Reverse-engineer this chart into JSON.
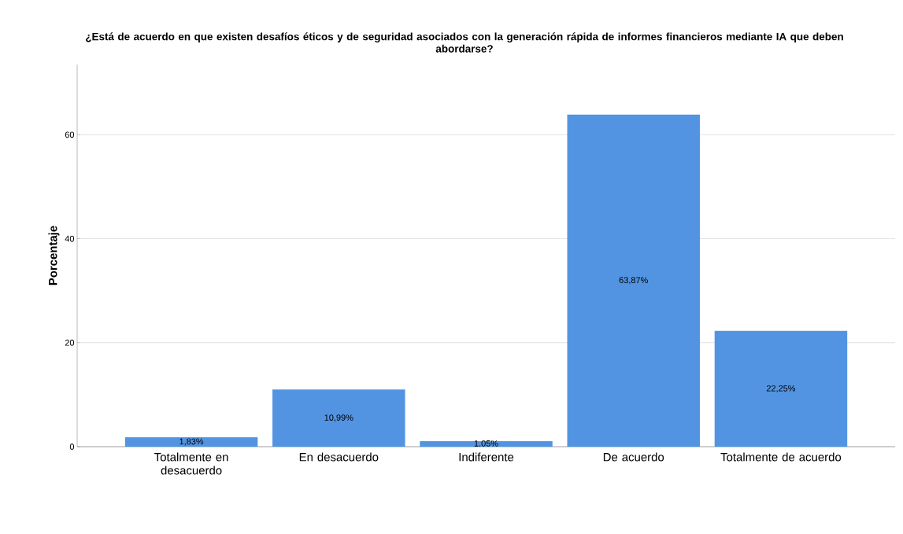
{
  "chart_data": {
    "type": "bar",
    "title": "¿Está de acuerdo en que existen desafíos éticos y de seguridad asociados con la generación rápida de informes financieros mediante IA que deben abordarse?",
    "ylabel": "Porcentaje",
    "categories": [
      "Totalmente en desacuerdo",
      "En desacuerdo",
      "Indiferente",
      "De acuerdo",
      "Totalmente de acuerdo"
    ],
    "values": [
      1.83,
      10.99,
      1.05,
      63.87,
      22.25
    ],
    "value_labels": [
      "1,83%",
      "10,99%",
      "1,05%",
      "63,87%",
      "22,25%"
    ],
    "color": "#5294e2",
    "ylim": [
      0,
      73.5
    ],
    "yticks": [
      0,
      20,
      40,
      60
    ],
    "grid": "y"
  }
}
